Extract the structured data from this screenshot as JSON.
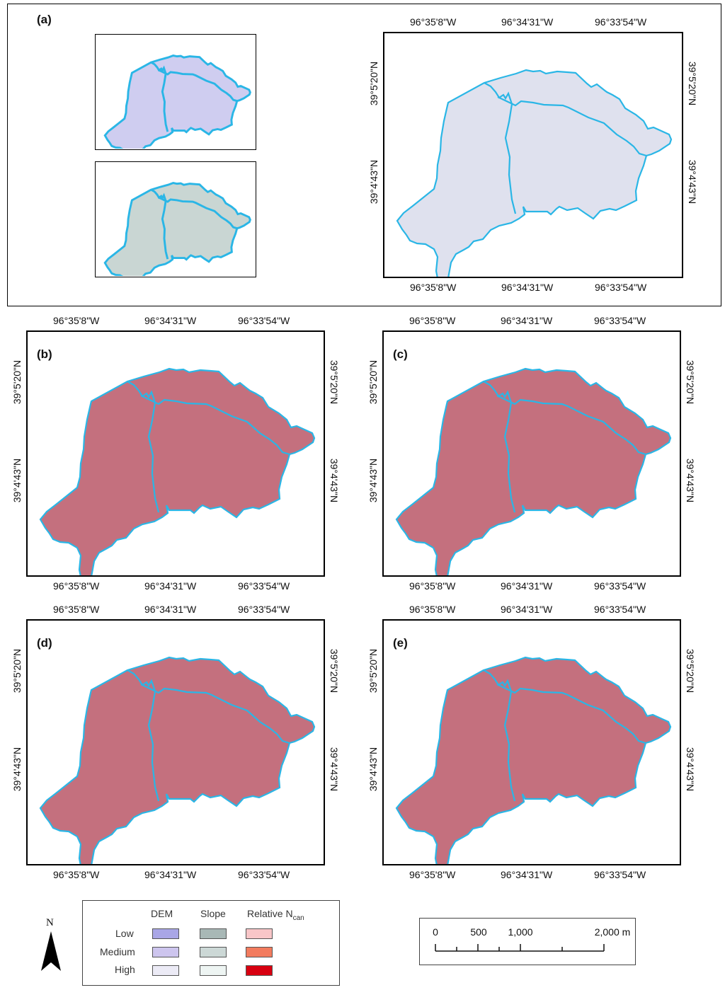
{
  "panels": {
    "a": "(a)",
    "b": "(b)",
    "c": "(c)",
    "d": "(d)",
    "e": "(e)"
  },
  "lon_labels": [
    "96°35'8\"W",
    "96°34'31\"W",
    "96°33'54\"W"
  ],
  "lat_labels": [
    "39°5'20\"N",
    "39°4'43\"N"
  ],
  "legend": {
    "column_headers": [
      "DEM",
      "Slope",
      "Relative N"
    ],
    "n_subscript": "can",
    "row_labels": [
      "Low",
      "Medium",
      "High"
    ],
    "dem_colors": [
      "#a9a6e6",
      "#cdc5ee",
      "#ecebf6"
    ],
    "slope_colors": [
      "#a8b8b6",
      "#ccd8d6",
      "#eef5f3"
    ],
    "ncan_colors": [
      "#f8c6c8",
      "#f27b5e",
      "#d80010"
    ]
  },
  "north_arrow": {
    "label": "N"
  },
  "scale_bar": {
    "ticks": [
      "0",
      "500",
      "1,000",
      "2,000 m"
    ]
  },
  "colors": {
    "boundary": "#2ab6e6",
    "dem_fill": "#cfcdf0",
    "slope_fill": "#c9d6d3",
    "base_fill": "#dfe1ee",
    "ncan_fill": "#c4707e"
  }
}
